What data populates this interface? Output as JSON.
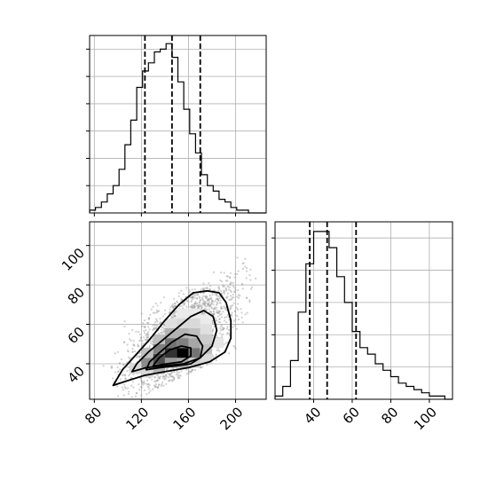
{
  "chart_data": {
    "type": "corner",
    "parameters": [
      {
        "xlim": [
          76,
          226
        ],
        "xticks": [
          80,
          120,
          160,
          200
        ],
        "quantiles": [
          123,
          146,
          170
        ]
      },
      {
        "xlim": [
          20,
          112
        ],
        "xticks": [
          40,
          60,
          80,
          100
        ],
        "yticks": [
          40,
          60,
          80,
          100
        ],
        "ylim": [
          22,
          112
        ],
        "quantiles": [
          38,
          47,
          62
        ]
      }
    ],
    "hist_a": {
      "edges": [
        76,
        81,
        86,
        91,
        96,
        101,
        106,
        111,
        116,
        121,
        126,
        131,
        136,
        141,
        146,
        151,
        156,
        161,
        166,
        171,
        176,
        181,
        186,
        191,
        196,
        201,
        206,
        211,
        216,
        226
      ],
      "counts": [
        1,
        2,
        4,
        7,
        10,
        16,
        25,
        34,
        46,
        52,
        55,
        59,
        60,
        62,
        57,
        48,
        38,
        29,
        22,
        14,
        10,
        8,
        5,
        4,
        2,
        1,
        1,
        0,
        0
      ],
      "ymax": 65
    },
    "hist_b": {
      "edges": [
        20,
        24,
        28,
        32,
        36,
        40,
        44,
        48,
        52,
        56,
        60,
        64,
        68,
        72,
        76,
        80,
        84,
        88,
        92,
        96,
        100,
        104,
        108,
        112
      ],
      "counts": [
        1,
        4,
        12,
        27,
        42,
        52,
        52,
        47,
        38,
        30,
        21,
        16,
        14,
        11,
        9,
        7,
        5,
        4,
        3,
        2,
        1,
        1,
        0
      ],
      "ymax": 55
    },
    "density_2d": {
      "colormap": [
        "#ffffff",
        "#000000"
      ],
      "cells": [
        {
          "x": 150,
          "y": 43,
          "w": 10,
          "h": 5,
          "v": 1.0
        },
        {
          "x": 140,
          "y": 43,
          "w": 10,
          "h": 5,
          "v": 0.8
        },
        {
          "x": 130,
          "y": 40,
          "w": 10,
          "h": 5,
          "v": 0.7
        },
        {
          "x": 160,
          "y": 43,
          "w": 10,
          "h": 5,
          "v": 0.55
        },
        {
          "x": 140,
          "y": 48,
          "w": 10,
          "h": 5,
          "v": 0.55
        },
        {
          "x": 150,
          "y": 48,
          "w": 10,
          "h": 5,
          "v": 0.5
        },
        {
          "x": 120,
          "y": 38,
          "w": 10,
          "h": 5,
          "v": 0.45
        },
        {
          "x": 130,
          "y": 45,
          "w": 10,
          "h": 5,
          "v": 0.5
        },
        {
          "x": 160,
          "y": 48,
          "w": 10,
          "h": 5,
          "v": 0.35
        },
        {
          "x": 140,
          "y": 38,
          "w": 10,
          "h": 5,
          "v": 0.4
        },
        {
          "x": 150,
          "y": 38,
          "w": 10,
          "h": 5,
          "v": 0.35
        },
        {
          "x": 130,
          "y": 35,
          "w": 10,
          "h": 5,
          "v": 0.3
        },
        {
          "x": 170,
          "y": 45,
          "w": 10,
          "h": 5,
          "v": 0.25
        },
        {
          "x": 150,
          "y": 53,
          "w": 10,
          "h": 5,
          "v": 0.3
        },
        {
          "x": 140,
          "y": 53,
          "w": 10,
          "h": 5,
          "v": 0.3
        },
        {
          "x": 160,
          "y": 53,
          "w": 10,
          "h": 5,
          "v": 0.25
        },
        {
          "x": 120,
          "y": 43,
          "w": 10,
          "h": 5,
          "v": 0.25
        },
        {
          "x": 170,
          "y": 50,
          "w": 10,
          "h": 5,
          "v": 0.2
        },
        {
          "x": 130,
          "y": 50,
          "w": 10,
          "h": 5,
          "v": 0.25
        },
        {
          "x": 150,
          "y": 58,
          "w": 10,
          "h": 5,
          "v": 0.15
        },
        {
          "x": 160,
          "y": 58,
          "w": 10,
          "h": 5,
          "v": 0.15
        },
        {
          "x": 140,
          "y": 58,
          "w": 10,
          "h": 5,
          "v": 0.12
        },
        {
          "x": 110,
          "y": 35,
          "w": 10,
          "h": 5,
          "v": 0.15
        },
        {
          "x": 170,
          "y": 55,
          "w": 10,
          "h": 5,
          "v": 0.12
        },
        {
          "x": 120,
          "y": 33,
          "w": 10,
          "h": 5,
          "v": 0.15
        },
        {
          "x": 160,
          "y": 38,
          "w": 10,
          "h": 5,
          "v": 0.2
        },
        {
          "x": 170,
          "y": 40,
          "w": 10,
          "h": 5,
          "v": 0.15
        },
        {
          "x": 180,
          "y": 48,
          "w": 10,
          "h": 5,
          "v": 0.1
        },
        {
          "x": 160,
          "y": 63,
          "w": 10,
          "h": 5,
          "v": 0.08
        },
        {
          "x": 150,
          "y": 63,
          "w": 10,
          "h": 5,
          "v": 0.08
        },
        {
          "x": 170,
          "y": 60,
          "w": 10,
          "h": 5,
          "v": 0.08
        }
      ]
    },
    "contours": [
      [
        [
          96,
          29
        ],
        [
          106,
          31
        ],
        [
          122,
          34
        ],
        [
          140,
          36
        ],
        [
          160,
          38
        ],
        [
          178,
          41
        ],
        [
          191,
          46
        ],
        [
          196,
          53
        ],
        [
          196,
          62
        ],
        [
          192,
          71
        ],
        [
          186,
          76
        ],
        [
          176,
          77
        ],
        [
          164,
          76
        ],
        [
          152,
          70
        ],
        [
          140,
          62
        ],
        [
          128,
          53
        ],
        [
          116,
          45
        ],
        [
          104,
          37
        ],
        [
          96,
          29
        ]
      ],
      [
        [
          112,
          36
        ],
        [
          124,
          38
        ],
        [
          140,
          39
        ],
        [
          156,
          40
        ],
        [
          170,
          43
        ],
        [
          180,
          49
        ],
        [
          184,
          57
        ],
        [
          181,
          64
        ],
        [
          173,
          67
        ],
        [
          162,
          64
        ],
        [
          150,
          58
        ],
        [
          138,
          52
        ],
        [
          126,
          46
        ],
        [
          116,
          40
        ],
        [
          112,
          36
        ]
      ],
      [
        [
          124,
          37
        ],
        [
          136,
          38
        ],
        [
          150,
          39
        ],
        [
          162,
          40
        ],
        [
          170,
          43
        ],
        [
          172,
          49
        ],
        [
          167,
          54
        ],
        [
          157,
          55
        ],
        [
          146,
          51
        ],
        [
          136,
          46
        ],
        [
          127,
          41
        ],
        [
          124,
          37
        ]
      ],
      [
        [
          130,
          39
        ],
        [
          142,
          40
        ],
        [
          154,
          41
        ],
        [
          162,
          44
        ],
        [
          162,
          48
        ],
        [
          154,
          49
        ],
        [
          144,
          47
        ],
        [
          135,
          43
        ],
        [
          130,
          39
        ]
      ]
    ],
    "scatter_color": "#999999",
    "scatter_regions": [
      {
        "x": [
          92,
          205
        ],
        "y": [
          25,
          85
        ],
        "n": 900
      },
      {
        "x": [
          115,
          215
        ],
        "y": [
          40,
          95
        ],
        "n": 700
      },
      {
        "x": [
          85,
          225
        ],
        "y": [
          24,
          108
        ],
        "n": 250
      }
    ]
  }
}
